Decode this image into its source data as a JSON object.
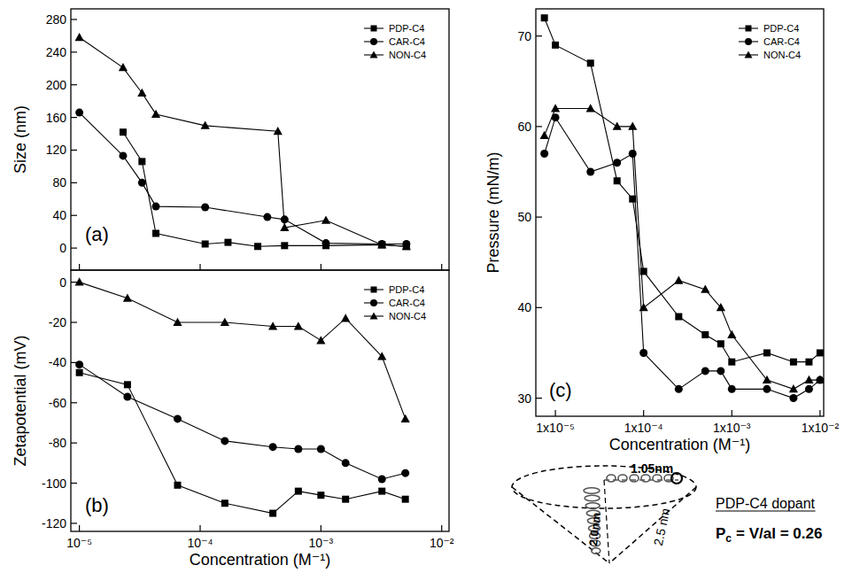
{
  "chart_data": [
    {
      "type": "line",
      "panel": "(a)",
      "y_label": "Size (nm)",
      "log": "x",
      "legend": "upper right",
      "tick_labels": "y",
      "xlim": [
        8.5e-06,
        0.0115
      ],
      "xticks": [
        1e-05,
        0.0001,
        0.001,
        0.01
      ],
      "ylim": [
        -27,
        293
      ],
      "yticks": [
        0,
        40,
        80,
        120,
        160,
        200,
        240,
        280
      ],
      "series": [
        {
          "name": "PDP-C4",
          "color": "#000000",
          "marker": "square",
          "x": [
            2.3e-05,
            3.3e-05,
            4.3e-05,
            0.00011,
            0.00017,
            0.0003,
            0.0005,
            0.0011,
            0.0032,
            0.0051
          ],
          "values": [
            142,
            106,
            18,
            5,
            7,
            2,
            3,
            3,
            4,
            2
          ]
        },
        {
          "name": "CAR-C4",
          "color": "#000000",
          "marker": "circle",
          "x": [
            1e-05,
            2.3e-05,
            3.3e-05,
            4.3e-05,
            0.00011,
            0.00036,
            0.0005,
            0.0011,
            0.0032,
            0.0051
          ],
          "values": [
            166,
            113,
            80,
            51,
            50,
            38,
            35,
            6,
            5,
            5
          ]
        },
        {
          "name": "NON-C4",
          "color": "#000000",
          "marker": "triangle",
          "x": [
            1e-05,
            2.3e-05,
            3.3e-05,
            4.3e-05,
            0.00011,
            0.00044,
            0.0005,
            0.0011,
            0.0032,
            0.0051
          ],
          "values": [
            258,
            221,
            190,
            164,
            150,
            143,
            25,
            34,
            4,
            2
          ]
        }
      ]
    },
    {
      "type": "line",
      "panel": "(b)",
      "y_label": "Zetapotential (mV)",
      "x_label": "Concentration (M⁻¹)",
      "log": "x",
      "legend": "upper right",
      "xlim": [
        8.5e-06,
        0.0115
      ],
      "xticks": [
        {
          "value": 1e-05,
          "label": "10⁻⁵"
        },
        {
          "value": 0.0001,
          "label": "10⁻⁴"
        },
        {
          "value": 0.001,
          "label": "10⁻³"
        },
        {
          "value": 0.01,
          "label": "10⁻²"
        }
      ],
      "ylim": [
        -124,
        6
      ],
      "yticks": [
        0,
        -20,
        -40,
        -60,
        -80,
        -100,
        -120
      ],
      "series": [
        {
          "name": "PDP-C4",
          "color": "#000000",
          "marker": "square",
          "x": [
            1e-05,
            2.5e-05,
            6.5e-05,
            0.00016,
            0.0004,
            0.00065,
            0.001,
            0.0016,
            0.0032,
            0.005
          ],
          "values": [
            -45,
            -51,
            -101,
            -110,
            -115,
            -104,
            -106,
            -108,
            -104,
            -108
          ]
        },
        {
          "name": "CAR-C4",
          "color": "#000000",
          "marker": "circle",
          "x": [
            1e-05,
            2.5e-05,
            6.5e-05,
            0.00016,
            0.0004,
            0.00065,
            0.001,
            0.0016,
            0.0032,
            0.005
          ],
          "values": [
            -41,
            -57,
            -68,
            -79,
            -82,
            -83,
            -83,
            -90,
            -98,
            -95
          ]
        },
        {
          "name": "NON-C4",
          "color": "#000000",
          "marker": "triangle",
          "x": [
            1e-05,
            2.5e-05,
            6.5e-05,
            0.00016,
            0.0004,
            0.00065,
            0.001,
            0.0016,
            0.0032,
            0.005
          ],
          "values": [
            0,
            -8,
            -20,
            -20,
            -22,
            -22,
            -29,
            -18,
            -37,
            -68
          ]
        }
      ]
    },
    {
      "type": "line",
      "panel": "(c)",
      "y_label": "Pressure (mN/m)",
      "x_label": "Concentration (M⁻¹)",
      "log": "x",
      "legend": "upper right",
      "xlim": [
        6e-06,
        0.011
      ],
      "xticks": [
        {
          "value": 1e-05,
          "label": "1x10⁻⁵"
        },
        {
          "value": 0.0001,
          "label": "1x10⁻⁴"
        },
        {
          "value": 0.001,
          "label": "1x10⁻³"
        },
        {
          "value": 0.01,
          "label": "1x10⁻²"
        }
      ],
      "ylim": [
        28,
        73
      ],
      "yticks": [
        30,
        40,
        50,
        60,
        70
      ],
      "series": [
        {
          "name": "PDP-C4",
          "color": "#000000",
          "marker": "square",
          "x": [
            7.5e-06,
            1e-05,
            2.5e-05,
            5e-05,
            7.5e-05,
            0.0001,
            0.00025,
            0.0005,
            0.00075,
            0.001,
            0.0025,
            0.005,
            0.0075,
            0.01
          ],
          "values": [
            72,
            69,
            67,
            54,
            52,
            44,
            39,
            37,
            36,
            34,
            35,
            34,
            34,
            35
          ]
        },
        {
          "name": "CAR-C4",
          "color": "#000000",
          "marker": "circle",
          "x": [
            7.5e-06,
            1e-05,
            2.5e-05,
            5e-05,
            7.5e-05,
            0.0001,
            0.00025,
            0.0005,
            0.00075,
            0.001,
            0.0025,
            0.005,
            0.0075,
            0.01
          ],
          "values": [
            57,
            61,
            55,
            56,
            57,
            35,
            31,
            33,
            33,
            31,
            31,
            30,
            31,
            32
          ]
        },
        {
          "name": "NON-C4",
          "color": "#000000",
          "marker": "triangle",
          "x": [
            7.5e-06,
            1e-05,
            2.5e-05,
            5e-05,
            7.5e-05,
            0.0001,
            0.00025,
            0.0005,
            0.00075,
            0.001,
            0.0025,
            0.005,
            0.0075,
            0.01
          ],
          "values": [
            59,
            62,
            62,
            60,
            60,
            40,
            43,
            42,
            40,
            37,
            32,
            31,
            32,
            32
          ]
        }
      ]
    }
  ],
  "diagram": {
    "dimensions": {
      "radius": "1.05nm",
      "height": "2.0nm",
      "slant": "2.5 nm"
    },
    "caption": "PDP-C4 dopant",
    "formula": {
      "symbol": "P",
      "subscript": "c",
      "expression": "= V/al = 0.26"
    }
  }
}
